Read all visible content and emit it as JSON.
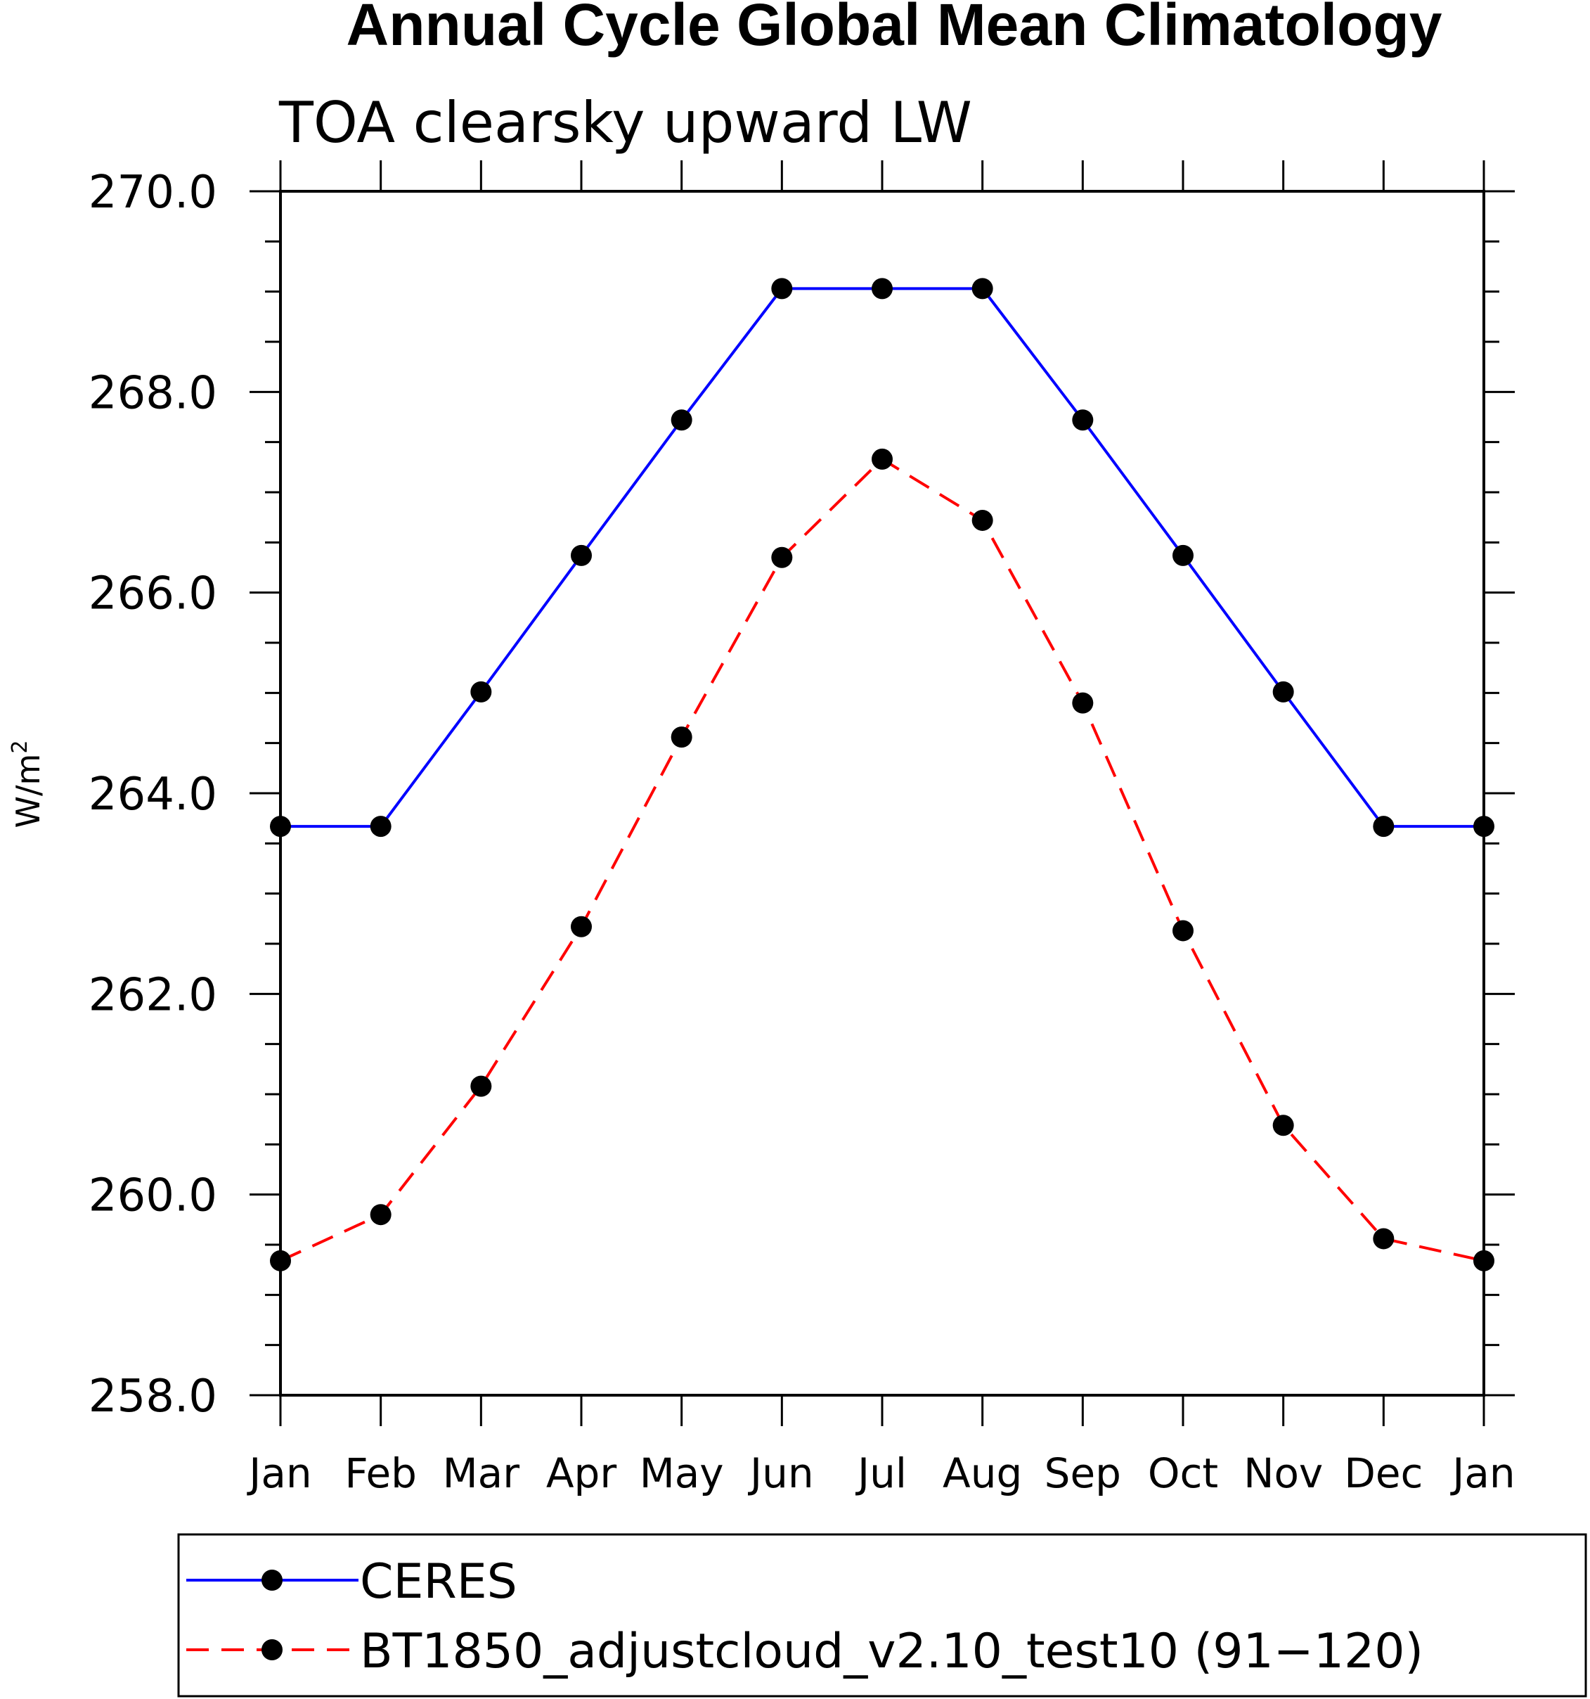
{
  "chart_data": {
    "type": "line",
    "title": "Annual Cycle Global Mean Climatology",
    "subtitle": "TOA clearsky upward LW",
    "xlabel": "",
    "ylabel": "W/m",
    "ylabel_superscript": "2",
    "categories": [
      "Jan",
      "Feb",
      "Mar",
      "Apr",
      "May",
      "Jun",
      "Jul",
      "Aug",
      "Sep",
      "Oct",
      "Nov",
      "Dec",
      "Jan"
    ],
    "ylim": [
      258.0,
      270.0
    ],
    "yticks": [
      "258.0",
      "260.0",
      "262.0",
      "264.0",
      "266.0",
      "268.0",
      "270.0"
    ],
    "grid": false,
    "legend_position": "bottom",
    "series": [
      {
        "name": "CERES",
        "color": "#0000ff",
        "linestyle": "solid",
        "values": [
          263.67,
          263.67,
          265.01,
          266.37,
          267.72,
          269.03,
          269.03,
          269.03,
          267.72,
          266.37,
          265.01,
          263.67,
          263.67
        ]
      },
      {
        "name": "BT1850_adjustcloud_v2.10_test10 (91−120)",
        "color": "#ff0000",
        "linestyle": "dashed",
        "values": [
          259.34,
          259.8,
          261.08,
          262.67,
          264.56,
          266.35,
          267.33,
          266.72,
          264.9,
          262.63,
          260.69,
          259.56,
          259.34
        ]
      }
    ]
  }
}
